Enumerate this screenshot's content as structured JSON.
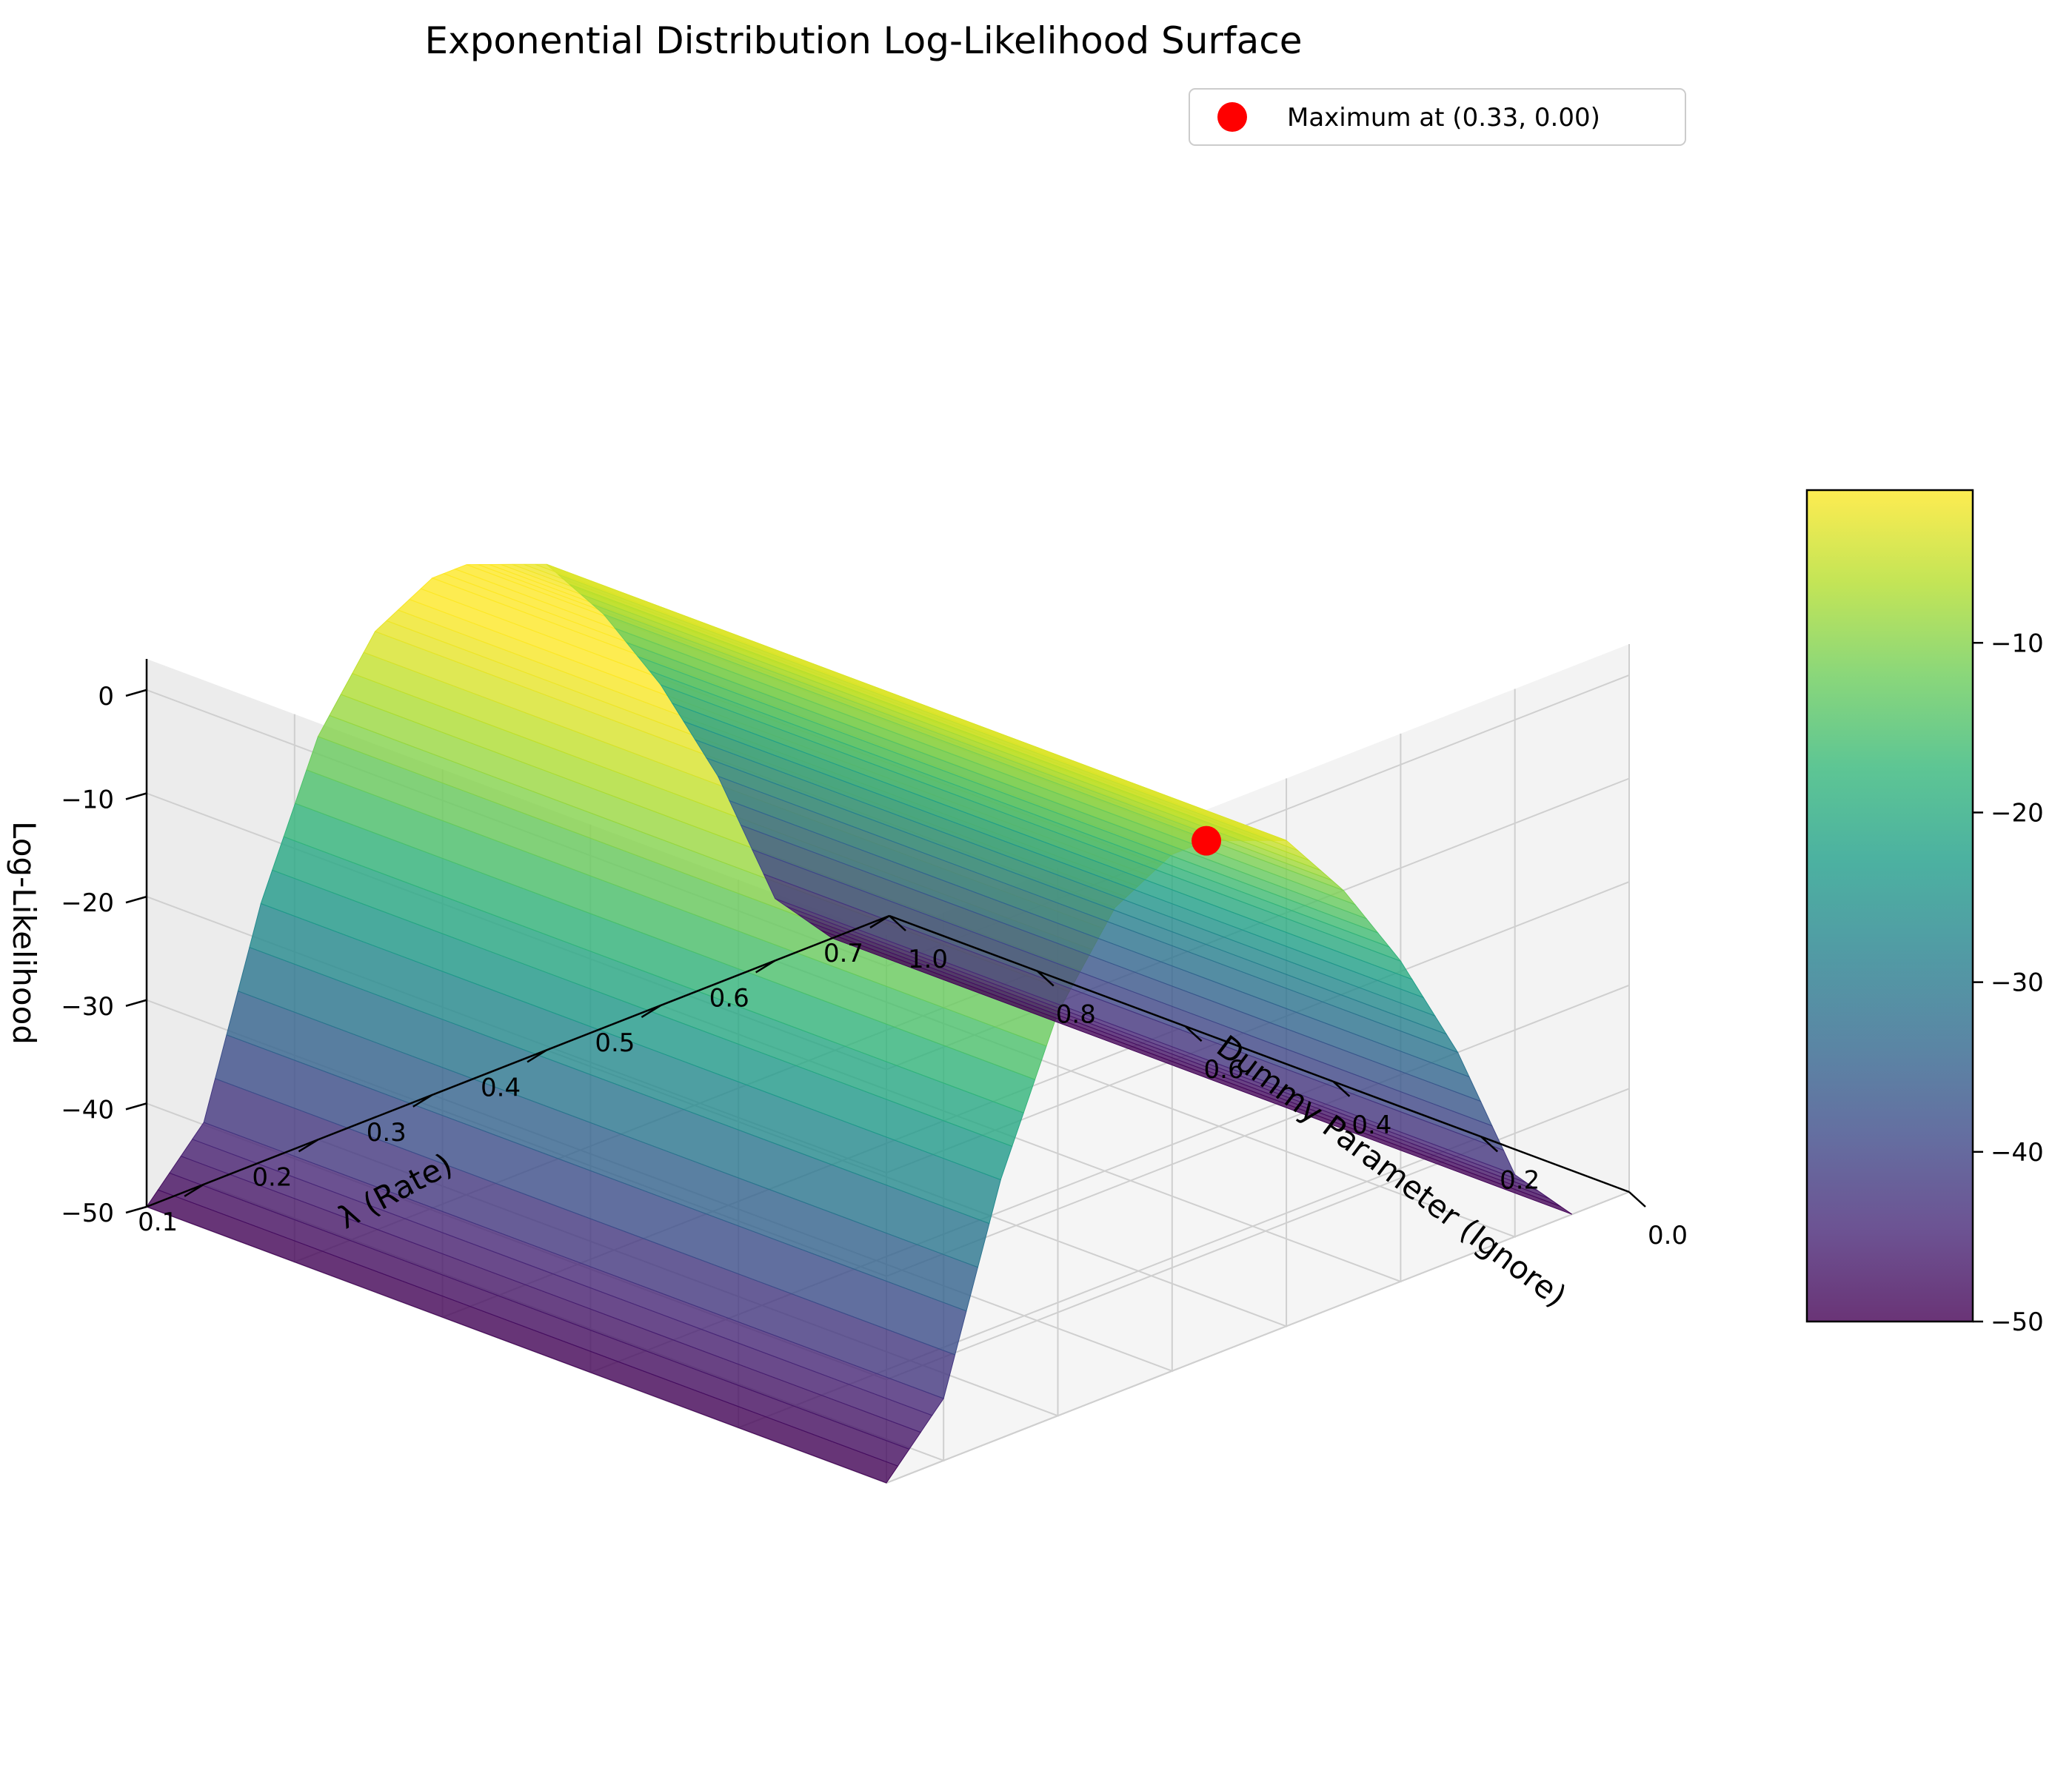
{
  "chart_data": {
    "type": "surface3d",
    "title": "Exponential Distribution Log-Likelihood Surface",
    "xlabel": "λ (Rate)",
    "ylabel": "Dummy Parameter (Ignore)",
    "zlabel": "Log-Likelihood",
    "xlim": [
      0.05,
      0.7
    ],
    "ylim": [
      0.0,
      1.0
    ],
    "zlim": [
      -50,
      3
    ],
    "x_ticks": [
      0.1,
      0.2,
      0.3,
      0.4,
      0.5,
      0.6,
      0.7
    ],
    "x_tick_labels": [
      "0.1",
      "0.2",
      "0.3",
      "0.4",
      "0.5",
      "0.6",
      "0.7"
    ],
    "y_ticks": [
      0.0,
      0.2,
      0.4,
      0.6,
      0.8,
      1.0
    ],
    "y_tick_labels": [
      "0.0",
      "0.2",
      "0.4",
      "0.6",
      "0.8",
      "1.0"
    ],
    "z_ticks": [
      0,
      -10,
      -20,
      -30,
      -40,
      -50
    ],
    "z_tick_labels": [
      "0",
      "−10",
      "−20",
      "−30",
      "−40",
      "−50"
    ],
    "surface_profile": {
      "description_of_values": "log-likelihood vs λ (constant along dummy parameter)",
      "lambda": [
        0.05,
        0.1,
        0.15,
        0.2,
        0.25,
        0.3,
        0.33,
        0.4,
        0.45,
        0.5,
        0.55,
        0.6,
        0.65
      ],
      "log_likelihood": [
        -50,
        -44,
        -25,
        -11,
        -3,
        0,
        0,
        -3,
        -10,
        -19,
        -30,
        -44,
        -50
      ]
    },
    "maximum_point": {
      "lambda": 0.33,
      "dummy": 0.0,
      "log_likelihood": 0.0
    },
    "legend": {
      "label": "Maximum at (0.33, 0.00)",
      "placement": "upper-right",
      "marker_color": "#ff0000"
    },
    "colorbar": {
      "colormap": "viridis",
      "range": [
        -50,
        -1
      ],
      "ticks": [
        -10,
        -20,
        -30,
        -40,
        -50
      ],
      "tick_labels": [
        "−10",
        "−20",
        "−30",
        "−40",
        "−50"
      ]
    },
    "grid": true
  }
}
